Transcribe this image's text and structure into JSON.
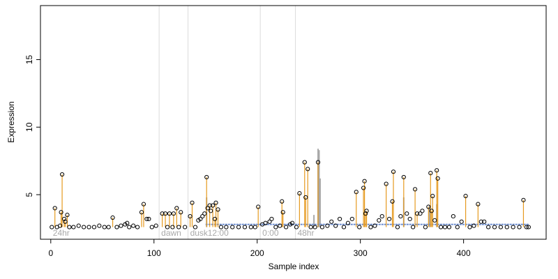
{
  "chart_data": {
    "type": "scatter",
    "title": "",
    "xlabel": "Sample index",
    "ylabel": "Expression",
    "xlim": [
      -10,
      480
    ],
    "ylim": [
      1.7,
      19
    ],
    "x_ticks": [
      0,
      100,
      200,
      300,
      400
    ],
    "y_ticks": [
      5,
      10,
      15
    ],
    "baseline": 2.6,
    "colors": {
      "points": "#000000",
      "stems": "#e69a1f",
      "smooth_line": "#6f8fd0",
      "gray_line": "#a9a9a9",
      "region_lines": "#dcdcdc"
    },
    "regions": [
      {
        "label": "24hr",
        "x": 0
      },
      {
        "label": "dawn",
        "x": 105
      },
      {
        "label": "dusk",
        "x": 133
      },
      {
        "label": "12:00",
        "x": 150
      },
      {
        "label": "0:00",
        "x": 203
      },
      {
        "label": "48hr",
        "x": 237
      }
    ],
    "region_lines": [
      105,
      133,
      203,
      237
    ],
    "highlighted_points": [
      {
        "x": 4,
        "y": 4.0
      },
      {
        "x": 11,
        "y": 6.5
      },
      {
        "x": 10,
        "y": 3.7
      },
      {
        "x": 13,
        "y": 3.2
      },
      {
        "x": 14,
        "y": 3.0
      },
      {
        "x": 16,
        "y": 3.5
      },
      {
        "x": 60,
        "y": 3.3
      },
      {
        "x": 88,
        "y": 3.7
      },
      {
        "x": 90,
        "y": 4.3
      },
      {
        "x": 108,
        "y": 3.6
      },
      {
        "x": 111,
        "y": 3.6
      },
      {
        "x": 115,
        "y": 3.6
      },
      {
        "x": 119,
        "y": 3.6
      },
      {
        "x": 122,
        "y": 4.0
      },
      {
        "x": 126,
        "y": 3.7
      },
      {
        "x": 135,
        "y": 3.4
      },
      {
        "x": 137,
        "y": 4.4
      },
      {
        "x": 151,
        "y": 6.3
      },
      {
        "x": 154,
        "y": 4.2
      },
      {
        "x": 157,
        "y": 4.2
      },
      {
        "x": 159,
        "y": 3.2
      },
      {
        "x": 160,
        "y": 4.4
      },
      {
        "x": 162,
        "y": 3.9
      },
      {
        "x": 201,
        "y": 4.1
      },
      {
        "x": 224,
        "y": 4.5
      },
      {
        "x": 225,
        "y": 3.7
      },
      {
        "x": 241,
        "y": 5.1
      },
      {
        "x": 246,
        "y": 7.4
      },
      {
        "x": 247,
        "y": 4.8
      },
      {
        "x": 249,
        "y": 6.9
      },
      {
        "x": 259,
        "y": 7.4
      },
      {
        "x": 296,
        "y": 5.2
      },
      {
        "x": 303,
        "y": 5.5
      },
      {
        "x": 304,
        "y": 6.0
      },
      {
        "x": 305,
        "y": 3.6
      },
      {
        "x": 306,
        "y": 3.8
      },
      {
        "x": 325,
        "y": 5.8
      },
      {
        "x": 331,
        "y": 4.5
      },
      {
        "x": 332,
        "y": 6.7
      },
      {
        "x": 342,
        "y": 6.3
      },
      {
        "x": 353,
        "y": 5.4
      },
      {
        "x": 355,
        "y": 3.6
      },
      {
        "x": 366,
        "y": 4.1
      },
      {
        "x": 368,
        "y": 6.6
      },
      {
        "x": 369,
        "y": 3.8
      },
      {
        "x": 370,
        "y": 4.9
      },
      {
        "x": 374,
        "y": 6.8
      },
      {
        "x": 375,
        "y": 6.2
      },
      {
        "x": 402,
        "y": 4.9
      },
      {
        "x": 414,
        "y": 4.3
      },
      {
        "x": 458,
        "y": 4.6
      }
    ],
    "baseline_points": [
      {
        "x": 1,
        "y": 2.6
      },
      {
        "x": 6,
        "y": 2.6
      },
      {
        "x": 9,
        "y": 2.7
      },
      {
        "x": 18,
        "y": 2.6
      },
      {
        "x": 22,
        "y": 2.6
      },
      {
        "x": 27,
        "y": 2.7
      },
      {
        "x": 32,
        "y": 2.6
      },
      {
        "x": 37,
        "y": 2.6
      },
      {
        "x": 42,
        "y": 2.6
      },
      {
        "x": 47,
        "y": 2.7
      },
      {
        "x": 52,
        "y": 2.6
      },
      {
        "x": 56,
        "y": 2.6
      },
      {
        "x": 64,
        "y": 2.6
      },
      {
        "x": 68,
        "y": 2.7
      },
      {
        "x": 72,
        "y": 2.8
      },
      {
        "x": 74,
        "y": 2.9
      },
      {
        "x": 76,
        "y": 2.6
      },
      {
        "x": 80,
        "y": 2.7
      },
      {
        "x": 84,
        "y": 2.6
      },
      {
        "x": 93,
        "y": 3.2
      },
      {
        "x": 95,
        "y": 3.2
      },
      {
        "x": 98,
        "y": 2.6
      },
      {
        "x": 102,
        "y": 2.7
      },
      {
        "x": 113,
        "y": 2.6
      },
      {
        "x": 118,
        "y": 2.6
      },
      {
        "x": 124,
        "y": 2.6
      },
      {
        "x": 130,
        "y": 2.6
      },
      {
        "x": 140,
        "y": 2.6
      },
      {
        "x": 143,
        "y": 3.1
      },
      {
        "x": 145,
        "y": 3.2
      },
      {
        "x": 147,
        "y": 3.4
      },
      {
        "x": 149,
        "y": 3.6
      },
      {
        "x": 152,
        "y": 4.0
      },
      {
        "x": 155,
        "y": 3.8
      },
      {
        "x": 165,
        "y": 2.6
      },
      {
        "x": 170,
        "y": 2.6
      },
      {
        "x": 176,
        "y": 2.6
      },
      {
        "x": 182,
        "y": 2.6
      },
      {
        "x": 188,
        "y": 2.6
      },
      {
        "x": 194,
        "y": 2.6
      },
      {
        "x": 198,
        "y": 2.6
      },
      {
        "x": 205,
        "y": 2.8
      },
      {
        "x": 208,
        "y": 2.9
      },
      {
        "x": 212,
        "y": 3.0
      },
      {
        "x": 214,
        "y": 3.2
      },
      {
        "x": 218,
        "y": 2.6
      },
      {
        "x": 222,
        "y": 2.7
      },
      {
        "x": 228,
        "y": 2.6
      },
      {
        "x": 232,
        "y": 2.8
      },
      {
        "x": 234,
        "y": 2.9
      },
      {
        "x": 238,
        "y": 2.6
      },
      {
        "x": 252,
        "y": 2.6
      },
      {
        "x": 256,
        "y": 2.6
      },
      {
        "x": 263,
        "y": 2.6
      },
      {
        "x": 268,
        "y": 2.7
      },
      {
        "x": 272,
        "y": 3.0
      },
      {
        "x": 276,
        "y": 2.7
      },
      {
        "x": 280,
        "y": 3.2
      },
      {
        "x": 284,
        "y": 2.6
      },
      {
        "x": 288,
        "y": 2.9
      },
      {
        "x": 292,
        "y": 3.2
      },
      {
        "x": 299,
        "y": 2.6
      },
      {
        "x": 310,
        "y": 2.6
      },
      {
        "x": 314,
        "y": 2.7
      },
      {
        "x": 318,
        "y": 3.1
      },
      {
        "x": 321,
        "y": 3.4
      },
      {
        "x": 328,
        "y": 3.2
      },
      {
        "x": 336,
        "y": 2.6
      },
      {
        "x": 339,
        "y": 3.4
      },
      {
        "x": 345,
        "y": 3.6
      },
      {
        "x": 348,
        "y": 3.2
      },
      {
        "x": 351,
        "y": 2.6
      },
      {
        "x": 358,
        "y": 3.6
      },
      {
        "x": 360,
        "y": 3.8
      },
      {
        "x": 363,
        "y": 2.6
      },
      {
        "x": 372,
        "y": 3.1
      },
      {
        "x": 378,
        "y": 2.6
      },
      {
        "x": 382,
        "y": 2.6
      },
      {
        "x": 386,
        "y": 2.6
      },
      {
        "x": 390,
        "y": 3.4
      },
      {
        "x": 394,
        "y": 2.6
      },
      {
        "x": 398,
        "y": 3.0
      },
      {
        "x": 406,
        "y": 2.6
      },
      {
        "x": 410,
        "y": 2.7
      },
      {
        "x": 417,
        "y": 3.0
      },
      {
        "x": 420,
        "y": 3.0
      },
      {
        "x": 424,
        "y": 2.6
      },
      {
        "x": 430,
        "y": 2.6
      },
      {
        "x": 436,
        "y": 2.6
      },
      {
        "x": 442,
        "y": 2.6
      },
      {
        "x": 448,
        "y": 2.6
      },
      {
        "x": 454,
        "y": 2.6
      },
      {
        "x": 461,
        "y": 2.6
      },
      {
        "x": 463,
        "y": 2.6
      }
    ],
    "smooth_line": {
      "x_start": 150,
      "x_end": 463,
      "y": 2.8
    },
    "gray_peaks": [
      {
        "x": 151,
        "y": 4.8
      },
      {
        "x": 255,
        "y": 3.5
      },
      {
        "x": 259,
        "y": 8.4
      },
      {
        "x": 260,
        "y": 8.3
      },
      {
        "x": 261,
        "y": 6.2
      },
      {
        "x": 342,
        "y": 4.8
      },
      {
        "x": 367,
        "y": 4.2
      },
      {
        "x": 374,
        "y": 4.3
      }
    ]
  }
}
